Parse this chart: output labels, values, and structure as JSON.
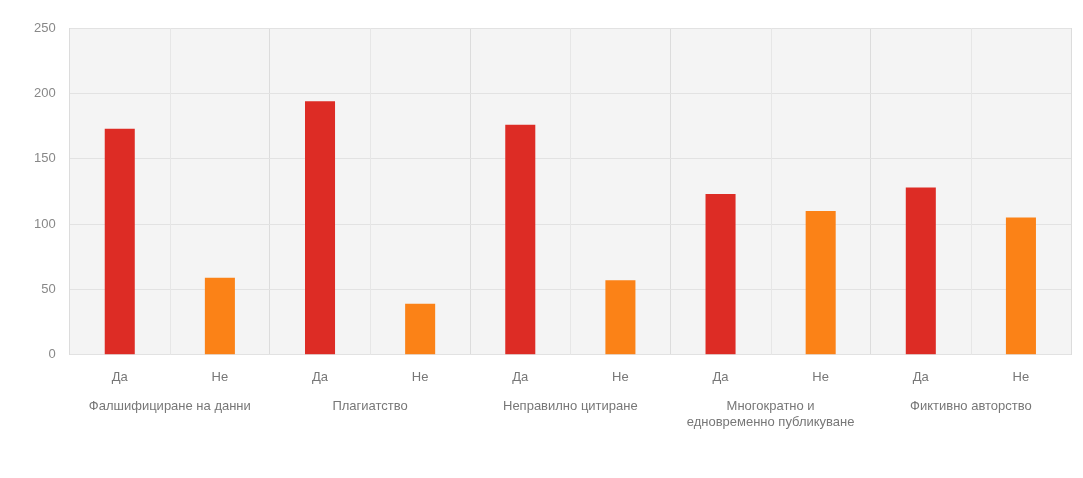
{
  "chart_data": {
    "type": "bar",
    "categories": [
      "Фалшифициране на данни",
      "Плагиатство",
      "Неправилно цитиране",
      "Многократно и едновременно публикуване",
      "Фиктивно авторство"
    ],
    "series": [
      {
        "name": "Да",
        "color": "#dd2c25",
        "values": [
          173,
          194,
          176,
          123,
          128
        ]
      },
      {
        "name": "Не",
        "color": "#fb8217",
        "values": [
          59,
          39,
          57,
          110,
          105
        ]
      }
    ],
    "ylim": [
      0,
      250
    ],
    "yticks": [
      0,
      50,
      100,
      150,
      200,
      250
    ],
    "grid": true,
    "legend": false
  }
}
